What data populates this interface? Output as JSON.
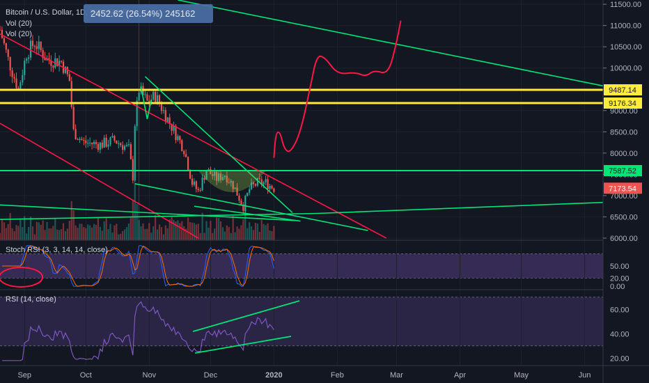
{
  "header": {
    "symbol": "Bitcoin / U.S. Dollar, 1D, BITSTAMP",
    "tooltip": "2452.62 (26.54%) 245162",
    "vol_line_1": "Vol (20)",
    "vol_line_2": "Vol (20)"
  },
  "chart_data": [
    {
      "type": "candlestick",
      "title": "Bitcoin / U.S. Dollar, 1D, BITSTAMP",
      "ylim": [
        5950,
        11600
      ],
      "y_ticks": [
        "11500.00",
        "11000.00",
        "10500.00",
        "10000.00",
        "9500.00",
        "9000.00",
        "8500.00",
        "8000.00",
        "7500.00",
        "7000.00",
        "6500.00",
        "6000.00"
      ],
      "x_ticks": [
        "Sep",
        "Oct",
        "Nov",
        "Dec",
        "2020",
        "Feb",
        "Mar",
        "Apr",
        "May",
        "Jun"
      ],
      "x_start": "2019-08-20",
      "x_end": "2020-06-10",
      "close_anchors": [
        [
          "2019-08-20",
          10900
        ],
        [
          "2019-08-24",
          10200
        ],
        [
          "2019-08-29",
          9500
        ],
        [
          "2019-09-02",
          10350
        ],
        [
          "2019-09-06",
          10600
        ],
        [
          "2019-09-12",
          10200
        ],
        [
          "2019-09-19",
          10150
        ],
        [
          "2019-09-23",
          9700
        ],
        [
          "2019-09-25",
          8500
        ],
        [
          "2019-09-30",
          8250
        ],
        [
          "2019-10-08",
          8200
        ],
        [
          "2019-10-15",
          8300
        ],
        [
          "2019-10-22",
          8100
        ],
        [
          "2019-10-24",
          7450
        ],
        [
          "2019-10-25",
          8700
        ],
        [
          "2019-10-27",
          9500
        ],
        [
          "2019-10-31",
          9200
        ],
        [
          "2019-11-04",
          9350
        ],
        [
          "2019-11-10",
          8800
        ],
        [
          "2019-11-18",
          8100
        ],
        [
          "2019-11-22",
          7300
        ],
        [
          "2019-11-25",
          7100
        ],
        [
          "2019-11-29",
          7600
        ],
        [
          "2019-12-04",
          7400
        ],
        [
          "2019-12-08",
          7500
        ],
        [
          "2019-12-12",
          7250
        ],
        [
          "2019-12-17",
          6750
        ],
        [
          "2019-12-20",
          7150
        ],
        [
          "2019-12-24",
          7300
        ],
        [
          "2019-12-28",
          7300
        ],
        [
          "2020-01-01",
          7173.54
        ]
      ],
      "price_labels": [
        {
          "value": 9487.14,
          "text": "9487.14",
          "color": "#ffeb3b"
        },
        {
          "value": 9176.34,
          "text": "9176.34",
          "color": "#ffeb3b"
        },
        {
          "value": 7587.52,
          "text": "7587.52",
          "color": "#00e676"
        },
        {
          "value": 7173.54,
          "text": "7173.54",
          "color": "#ef5350"
        }
      ],
      "horizontal_lines": [
        {
          "value": 9487.14,
          "color": "#ffeb3b",
          "width": 3
        },
        {
          "value": 9176.34,
          "color": "#ffeb3b",
          "width": 3
        },
        {
          "value": 7587.52,
          "color": "#00e676",
          "width": 2
        }
      ],
      "trend_lines": [
        {
          "color": "#ff1744",
          "points": [
            [
              "2019-08-20",
              10800
            ],
            [
              "2020-02-25",
              6000
            ]
          ]
        },
        {
          "color": "#ff1744",
          "points": [
            [
              "2019-08-20",
              8700
            ],
            [
              "2019-11-25",
              6000
            ]
          ]
        },
        {
          "color": "#00e676",
          "points": [
            [
              "2019-10-30",
              9800
            ],
            [
              "2020-01-10",
              6600
            ]
          ]
        },
        {
          "color": "#00e676",
          "points": [
            [
              "2019-10-28",
              9550
            ],
            [
              "2019-10-31",
              8800
            ],
            [
              "2019-11-02",
              9250
            ]
          ]
        },
        {
          "color": "#00e676",
          "points": [
            [
              "2019-08-20",
              6780
            ],
            [
              "2020-01-13",
              6410
            ]
          ]
        },
        {
          "color": "#00e676",
          "points": [
            [
              "2019-08-20",
              6440
            ],
            [
              "2020-01-22",
              6580
            ],
            [
              "2020-06-10",
              6840
            ]
          ]
        },
        {
          "color": "#00e676",
          "points": [
            [
              "2019-10-25",
              7280
            ],
            [
              "2020-02-16",
              6180
            ]
          ]
        },
        {
          "color": "#00e676",
          "points": [
            [
              "2019-11-23",
              6750
            ],
            [
              "2020-01-14",
              6400
            ]
          ]
        },
        {
          "color": "#00e676",
          "points": [
            [
              "2019-11-15",
              11600
            ],
            [
              "2020-06-10",
              9580
            ]
          ]
        }
      ],
      "projection_path": {
        "color": "#ff1744",
        "points": [
          [
            "2020-01-01",
            7900
          ],
          [
            "2020-01-02",
            8480
          ],
          [
            "2020-01-04",
            8500
          ],
          [
            "2020-01-06",
            8100
          ],
          [
            "2020-01-09",
            8000
          ],
          [
            "2020-01-14",
            8480
          ],
          [
            "2020-01-19",
            9600
          ],
          [
            "2020-01-22",
            10300
          ],
          [
            "2020-01-26",
            10250
          ],
          [
            "2020-02-01",
            9850
          ],
          [
            "2020-02-10",
            9900
          ],
          [
            "2020-02-15",
            9800
          ],
          [
            "2020-02-19",
            9950
          ],
          [
            "2020-02-26",
            9850
          ],
          [
            "2020-03-01",
            10600
          ],
          [
            "2020-03-03",
            11100
          ]
        ]
      }
    },
    {
      "type": "line",
      "title": "Stoch RSI (3, 3, 14, 14, close)",
      "ylim": [
        -5,
        110
      ],
      "y_ticks": [
        "50.00",
        "20.00",
        "0.00"
      ],
      "band": [
        20,
        80
      ]
    },
    {
      "type": "line",
      "title": "RSI (14, close)",
      "ylim": [
        15,
        75
      ],
      "y_ticks": [
        "60.00",
        "40.00",
        "20.00"
      ],
      "band": [
        30,
        70
      ]
    }
  ]
}
